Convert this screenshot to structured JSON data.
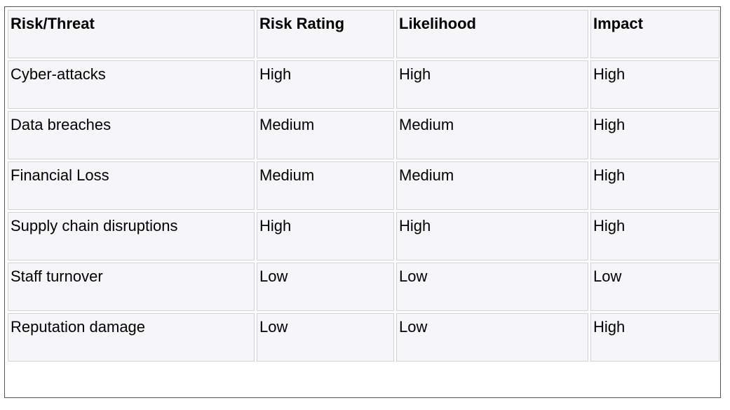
{
  "table": {
    "headers": [
      "Risk/Threat",
      "Risk Rating",
      "Likelihood",
      "Impact"
    ],
    "rows": [
      [
        "Cyber-attacks",
        "High",
        "High",
        "High"
      ],
      [
        "Data breaches",
        "Medium",
        "Medium",
        "High"
      ],
      [
        "Financial Loss",
        "Medium",
        "Medium",
        "High"
      ],
      [
        "Supply chain disruptions",
        "High",
        "High",
        "High"
      ],
      [
        "Staff turnover",
        "Low",
        "Low",
        "Low"
      ],
      [
        "Reputation damage",
        "Low",
        "Low",
        "High"
      ]
    ]
  },
  "colors": {
    "cell_background": "#f6f6f9",
    "cell_border": "#d2d2dc",
    "outer_border": "#555555",
    "text": "#000000"
  }
}
